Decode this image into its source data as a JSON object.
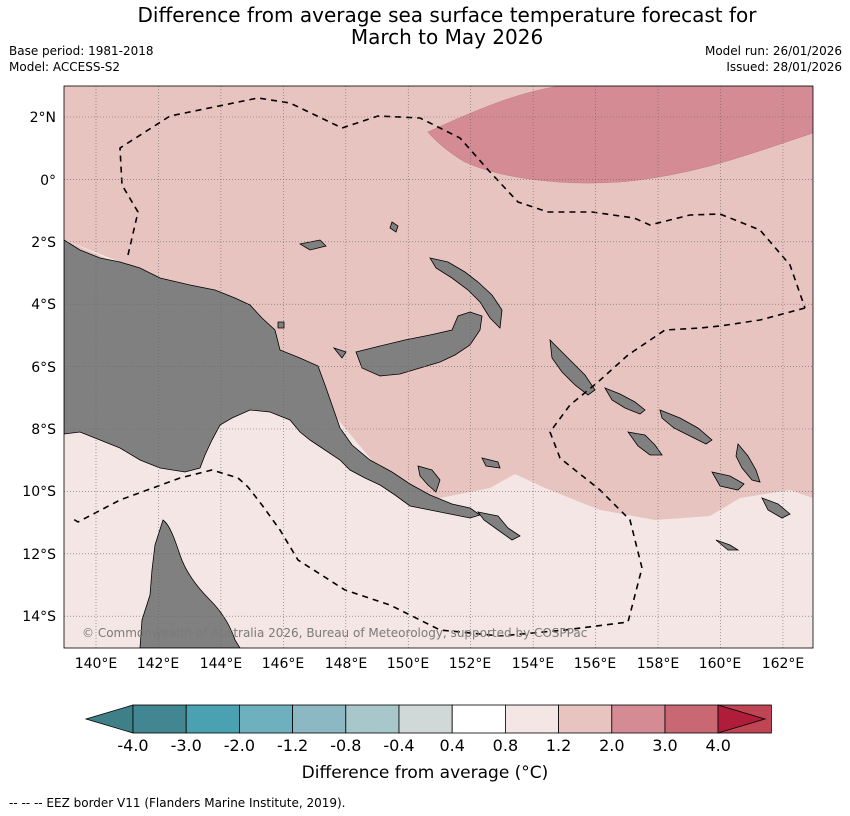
{
  "header": {
    "title_line1": "Difference from average sea surface temperature forecast for",
    "title_line2": "March to May 2026",
    "base_period": "Base period: 1981-2018",
    "model": "Model: ACCESS-S2",
    "model_run": "Model run: 26/01/2026",
    "issued": "Issued: 28/01/2026"
  },
  "map": {
    "lon_labels": [
      "140°E",
      "142°E",
      "144°E",
      "146°E",
      "148°E",
      "150°E",
      "152°E",
      "154°E",
      "156°E",
      "158°E",
      "160°E",
      "162°E"
    ],
    "lat_labels": [
      "2°N",
      "0°",
      "2°S",
      "4°S",
      "6°S",
      "8°S",
      "10°S",
      "12°S",
      "14°S"
    ],
    "copyright": "© Commonwealth of Australia 2026, Bureau of Meteorology, supported by COSPPac",
    "colors": {
      "land": "#808080",
      "anom_0_4_0_8": "#f4e6e4",
      "anom_0_8_1_2": "#e8c4c0",
      "anom_1_2_2_0": "#d48b94"
    }
  },
  "colorbar": {
    "labels": [
      "-4.0",
      "-3.0",
      "-2.0",
      "-1.2",
      "-0.8",
      "-0.4",
      "0.4",
      "0.8",
      "1.2",
      "2.0",
      "3.0",
      "4.0"
    ],
    "colors": [
      "#418690",
      "#4aa1b1",
      "#6fb0bf",
      "#8bb8c2",
      "#a8c7cb",
      "#d0d8d8",
      "#ffffff",
      "#f4e6e4",
      "#e8c4c0",
      "#d48b94",
      "#c96873",
      "#bf4555"
    ],
    "under_color": "#3f7f87",
    "over_color": "#b01d3b",
    "title": "Difference from average (°C)"
  },
  "footnote": "--  --  -- EEZ border V11 (Flanders Marine Institute, 2019)."
}
